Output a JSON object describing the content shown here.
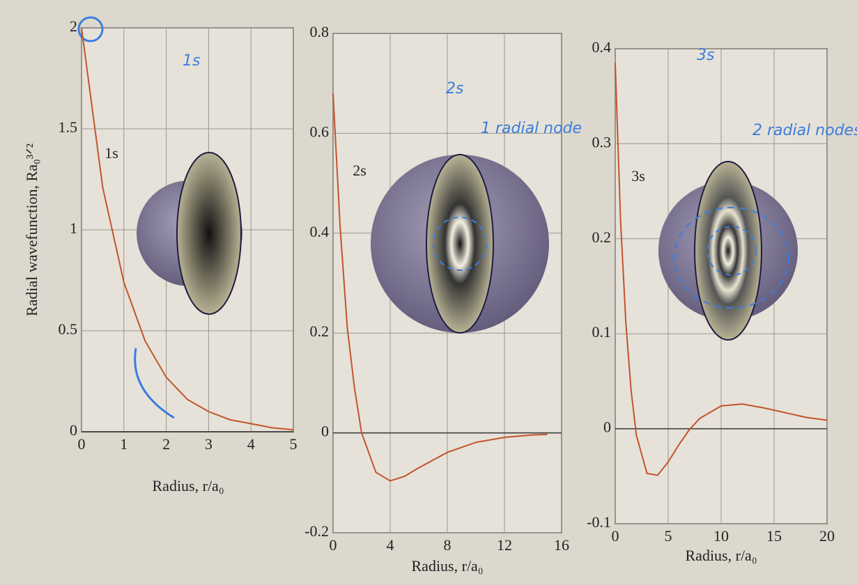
{
  "chart_data": [
    {
      "type": "line",
      "label": "1s",
      "annotations": [
        "1s"
      ],
      "x_label": "Radius, r/a₀",
      "y_label": "Radial wavefunction, Ra₀³ᐟ²",
      "x": [
        0,
        0.5,
        1,
        1.5,
        2,
        2.5,
        3,
        3.5,
        4,
        4.5,
        5
      ],
      "values": [
        2,
        1.21,
        0.74,
        0.45,
        0.27,
        0.16,
        0.1,
        0.06,
        0.04,
        0.02,
        0.01
      ],
      "color": "#c2542c",
      "xlim": [
        0,
        5
      ],
      "ylim": [
        0,
        2
      ],
      "xticks": [
        0,
        1,
        2,
        3,
        4,
        5
      ],
      "yticks": [
        0,
        0.5,
        1,
        1.5,
        2
      ],
      "grid": true
    },
    {
      "type": "line",
      "label": "2s",
      "annotations": [
        "2s",
        "1 radial node"
      ],
      "x_label": "Radius, r/a₀",
      "x": [
        0,
        0.5,
        1,
        1.5,
        2,
        3,
        4,
        5,
        6,
        8,
        10,
        12,
        14,
        15
      ],
      "values": [
        0.68,
        0.41,
        0.21,
        0.09,
        0,
        -0.079,
        -0.096,
        -0.087,
        -0.07,
        -0.039,
        -0.019,
        -0.009,
        -0.004,
        -0.003
      ],
      "color": "#c2542c",
      "xlim": [
        0,
        16
      ],
      "ylim": [
        -0.2,
        0.8
      ],
      "xticks": [
        0,
        4,
        8,
        12,
        16
      ],
      "yticks": [
        -0.2,
        0,
        0.2,
        0.4,
        0.6,
        0.8
      ],
      "grid": true
    },
    {
      "type": "line",
      "label": "3s",
      "annotations": [
        "3s",
        "2 radial nodes"
      ],
      "x_label": "Radius, r/a₀",
      "x": [
        0,
        0.5,
        1,
        1.5,
        2,
        3,
        4,
        5,
        6,
        7,
        8,
        10,
        12,
        14,
        16,
        18,
        20
      ],
      "values": [
        0.385,
        0.22,
        0.112,
        0.04,
        -0.007,
        -0.047,
        -0.049,
        -0.035,
        -0.017,
        -0.001,
        0.011,
        0.024,
        0.026,
        0.022,
        0.017,
        0.012,
        0.009
      ],
      "color": "#c2542c",
      "xlim": [
        0,
        20
      ],
      "ylim": [
        -0.1,
        0.4
      ],
      "xticks": [
        0,
        5,
        10,
        15,
        20
      ],
      "yticks": [
        -0.1,
        0,
        0.1,
        0.2,
        0.3,
        0.4
      ],
      "grid": true
    }
  ]
}
